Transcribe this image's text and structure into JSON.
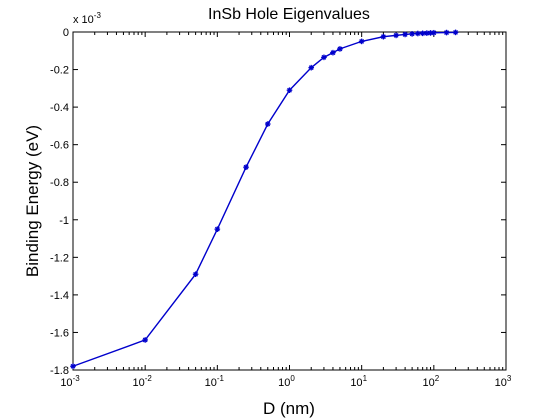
{
  "chart_data": {
    "type": "line",
    "title": "InSb Hole Eigenvalues",
    "xlabel": "D (nm)",
    "ylabel": "Binding Energy (eV)",
    "xscale": "log",
    "xlim": [
      0.001,
      1000
    ],
    "ylim": [
      -0.0018,
      0
    ],
    "y_multiplier_base": "x 10",
    "y_multiplier_exp": "-3",
    "x_tick_values": [
      0.001,
      0.01,
      0.1,
      1,
      10,
      100,
      1000
    ],
    "x_ticks": [
      {
        "base": "10",
        "exp": "-3"
      },
      {
        "base": "10",
        "exp": "-2"
      },
      {
        "base": "10",
        "exp": "-1"
      },
      {
        "base": "10",
        "exp": "0"
      },
      {
        "base": "10",
        "exp": "1"
      },
      {
        "base": "10",
        "exp": "2"
      },
      {
        "base": "10",
        "exp": "3"
      }
    ],
    "y_tick_values": [
      0,
      -0.0002,
      -0.0004,
      -0.0006,
      -0.0008,
      -0.001,
      -0.0012,
      -0.0014,
      -0.0016,
      -0.0018
    ],
    "y_tick_labels": [
      "0",
      "-0.2",
      "-0.4",
      "-0.6",
      "-0.8",
      "-1",
      "-1.2",
      "-1.4",
      "-1.6",
      "-1.8"
    ],
    "grid": false,
    "line_color": "#0000cc",
    "marker": "asterisk",
    "series": [
      {
        "x": [
          0.001,
          0.01,
          0.05,
          0.1,
          0.25,
          0.5,
          1,
          2,
          3,
          4,
          5,
          10,
          20,
          30,
          40,
          50,
          60,
          70,
          80,
          90,
          100,
          150,
          200
        ],
        "y": [
          -0.00178,
          -0.00164,
          -0.00129,
          -0.00105,
          -0.00072,
          -0.00049,
          -0.00031,
          -0.00019,
          -0.000135,
          -0.00011,
          -9e-05,
          -5e-05,
          -2.5e-05,
          -1.8e-05,
          -1.3e-05,
          -1e-05,
          -8e-06,
          -7e-06,
          -6e-06,
          -5e-06,
          -4e-06,
          -3e-06,
          -2e-06
        ]
      }
    ]
  }
}
